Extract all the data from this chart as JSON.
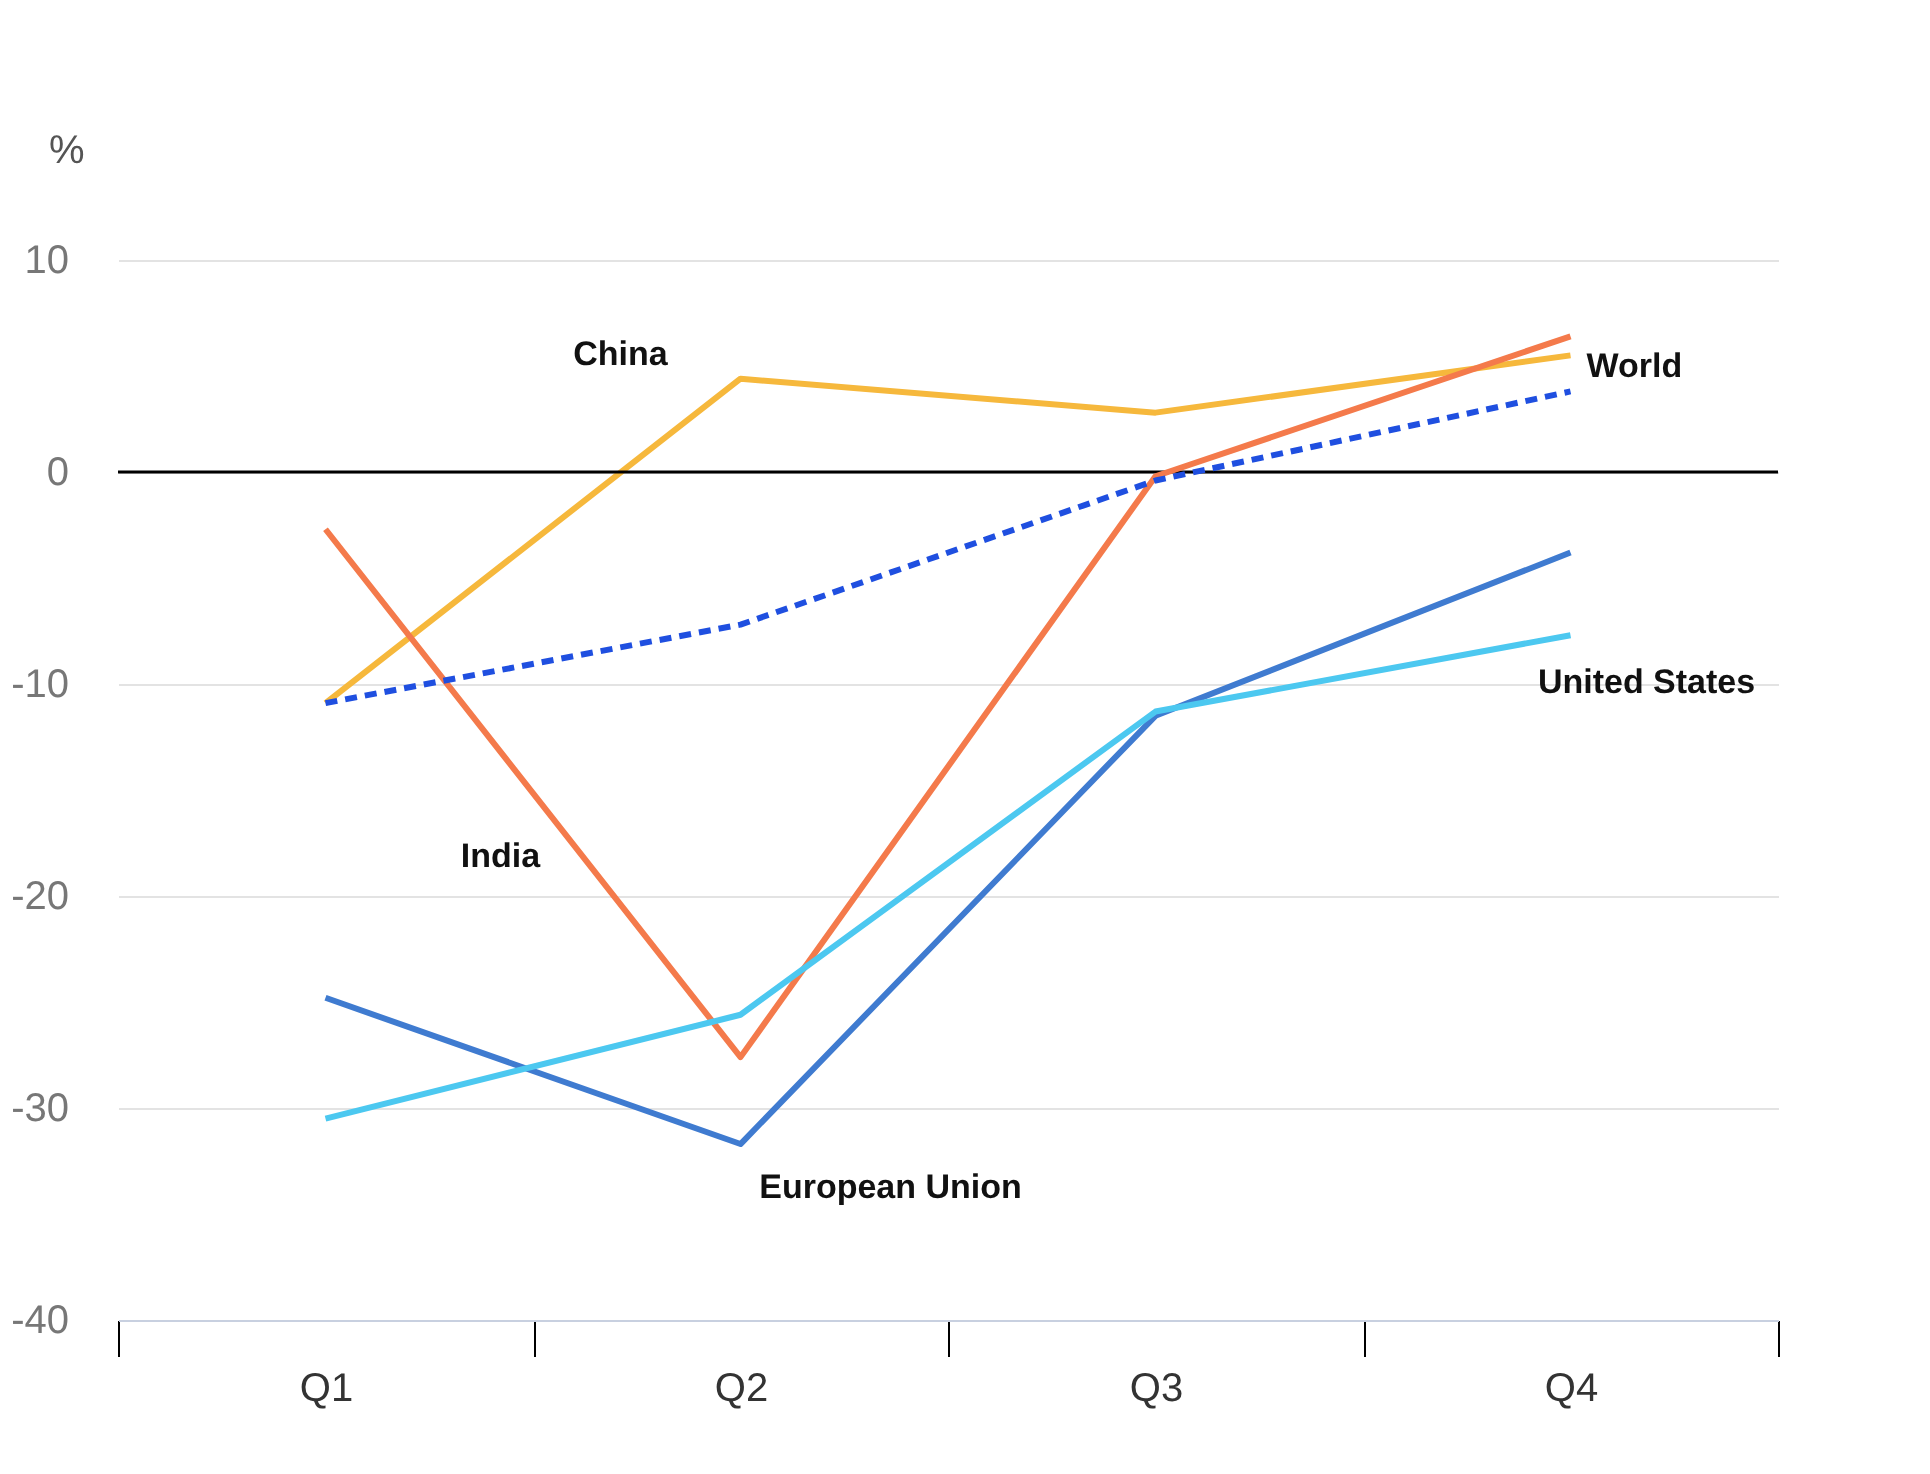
{
  "chart_data": {
    "type": "line",
    "ylabel": "%",
    "categories": [
      "Q1",
      "Q2",
      "Q3",
      "Q4"
    ],
    "series": [
      {
        "name": "China",
        "color": "#f6b83c",
        "values": [
          -10.9,
          4.4,
          2.8,
          5.5
        ]
      },
      {
        "name": "India",
        "color": "#f47a4b",
        "values": [
          -2.7,
          -27.6,
          -0.2,
          6.4
        ]
      },
      {
        "name": "World",
        "color": "#1f4fe0",
        "line_style": "dashed",
        "values": [
          -10.9,
          -7.2,
          -0.4,
          3.8
        ]
      },
      {
        "name": "European Union",
        "color": "#3f7bd0",
        "values": [
          -24.8,
          -31.7,
          -11.5,
          -3.8
        ]
      },
      {
        "name": "United States",
        "color": "#4cc8f0",
        "values": [
          -30.5,
          -25.6,
          -11.3,
          -7.7
        ]
      }
    ],
    "ylim": [
      -40,
      10
    ],
    "yticks": [
      -40,
      -30,
      -20,
      -10,
      0,
      10
    ],
    "grid": "y",
    "legend": false,
    "ref_lines": [
      {
        "axis": "y",
        "value": 0,
        "color": "#000000"
      }
    ]
  }
}
